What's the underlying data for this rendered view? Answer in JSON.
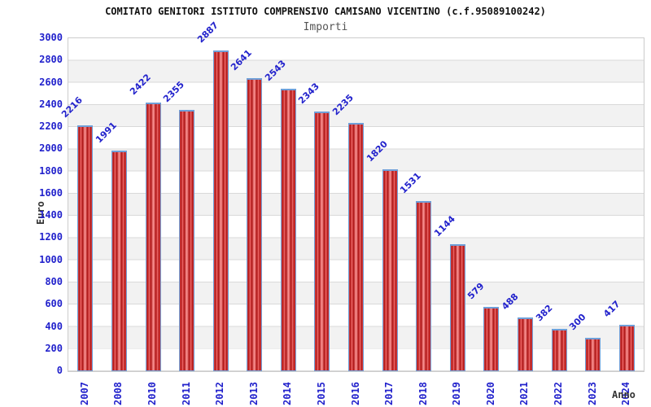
{
  "title": "COMITATO GENITORI ISTITUTO COMPRENSIVO CAMISANO VICENTINO (c.f.95089100242)",
  "subtitle": "Importi",
  "chart_data": {
    "type": "bar",
    "categories": [
      "2007",
      "2008",
      "2010",
      "2011",
      "2012",
      "2013",
      "2014",
      "2015",
      "2016",
      "2017",
      "2018",
      "2019",
      "2020",
      "2021",
      "2022",
      "2023",
      "2024"
    ],
    "values": [
      2216,
      1991,
      2422,
      2355,
      2887,
      2641,
      2543,
      2343,
      2235,
      1820,
      1531,
      1144,
      579,
      488,
      382,
      300,
      417
    ],
    "title": "COMITATO GENITORI ISTITUTO COMPRENSIVO CAMISANO VICENTINO (c.f.95089100242)",
    "subtitle": "Importi",
    "xlabel": "Anno",
    "ylabel": "Euro",
    "ylim": [
      0,
      3000
    ],
    "ytick_step": 200,
    "grid": "horizontal gridlines every 200 with alternating white/light-gray bands",
    "legend": "none",
    "bar_labels_rotation_deg": -45,
    "xtick_rotation_deg": -90
  },
  "colors": {
    "title_text": "#111111",
    "subtitle_text": "#555555",
    "axis_tick_text": "#2222cc",
    "value_label_text": "#2222cc",
    "axis_title_text": "#333333",
    "bar_fill": "#cc1111",
    "bar_fill_highlight": "#ff9999",
    "bar_border": "#6f9fd8",
    "band_gray": "#f2f2f2",
    "gridline": "#d9d9d9",
    "plot_border": "#cccccc",
    "background": "#ffffff"
  }
}
